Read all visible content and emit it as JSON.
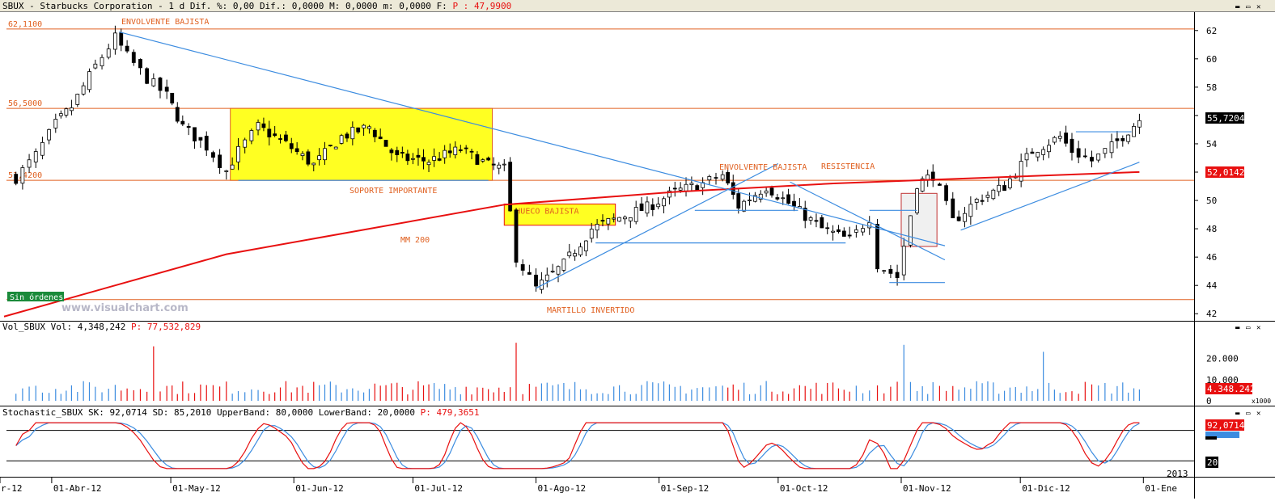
{
  "header": {
    "symbol": "SBUX",
    "company": "Starbucks Corporation",
    "interval": "1 d",
    "diff_pct_label": "Dif. %:",
    "diff_pct": "0,00",
    "diff_label": "Dif.:",
    "diff": "0,0000",
    "max_label": "M:",
    "max": "0,0000",
    "min_label": "m:",
    "min": "0,0000",
    "close_label": "F:",
    "price_label": "P :",
    "price": "47,9900"
  },
  "price_panel": {
    "levels": [
      {
        "label": "62,1100",
        "value": 62.11
      },
      {
        "label": "56,5000",
        "value": 56.5
      },
      {
        "label": "51,4200",
        "value": 51.42
      },
      {
        "label": "",
        "value": 43.0
      }
    ],
    "annotations": {
      "envolvente_top": "ENVOLVENTE BAJISTA",
      "soporte": "SOPORTE IMPORTANTE",
      "hueco": "HUECO  BAJISTA",
      "mm200": "MM 200",
      "martillo": "MARTILLO INVERTIDO",
      "envolvente_mid": "ENVOLVENTE BAJISTA",
      "resistencia": "RESISTENCIA"
    },
    "orders_button": "Sin órdenes",
    "watermark": "www.visualchart.com",
    "last_price_tag": "55,7204",
    "ma_tag": "52,0142",
    "colors": {
      "level": "#e06020",
      "ma": "#e81010",
      "trend": "#3c8ce0",
      "highlight": "#ffff22",
      "annotation": "#e06020"
    }
  },
  "volume_panel": {
    "title": "Vol_SBUX",
    "vol_label": "Vol:",
    "vol": "4,348,242",
    "p_label": "P:",
    "p": "77,532,829",
    "last_tag": "4.348.242",
    "multiplier": "x1000"
  },
  "stoch_panel": {
    "title": "Stochastic_SBUX",
    "sk_label": "SK:",
    "sk": "92,0714",
    "sd_label": "SD:",
    "sd": "85,2010",
    "upper_label": "UpperBand:",
    "upper": "80,0000",
    "lower_label": "LowerBand:",
    "lower": "20,0000",
    "p_label": "P:",
    "p": "479,3651",
    "sk_tag": "92,0714",
    "lower_tag": "20"
  },
  "x_axis": {
    "dates": [
      "r-12",
      "01-Abr-12",
      "01-May-12",
      "01-Jun-12",
      "01-Jul-12",
      "01-Ago-12",
      "01-Sep-12",
      "01-Oct-12",
      "01-Nov-12",
      "01-Dic-12",
      "01-Ene"
    ],
    "year_marker": "2013"
  },
  "chart_data": [
    {
      "type": "candlestick",
      "title": "SBUX - Starbucks Corporation - 1 d",
      "y_ticks": [
        62,
        60,
        58,
        56,
        54,
        52,
        50,
        48,
        46,
        44,
        42
      ],
      "ylim": [
        41.5,
        63.3
      ],
      "x_ticks": [
        "r-12",
        "01-Abr-12",
        "01-May-12",
        "01-Jun-12",
        "01-Jul-12",
        "01-Ago-12",
        "01-Sep-12",
        "01-Oct-12",
        "01-Nov-12",
        "01-Dic-12",
        "01-Ene"
      ],
      "close_path": [
        {
          "date": "2012-03-23",
          "close": 51.6
        },
        {
          "date": "2012-03-28",
          "close": 53.2
        },
        {
          "date": "2012-04-02",
          "close": 55.4
        },
        {
          "date": "2012-04-06",
          "close": 56.6
        },
        {
          "date": "2012-04-12",
          "close": 59.5
        },
        {
          "date": "2012-04-17",
          "close": 61.5
        },
        {
          "date": "2012-04-20",
          "close": 60.2
        },
        {
          "date": "2012-04-25",
          "close": 58.6
        },
        {
          "date": "2012-04-30",
          "close": 57.4
        },
        {
          "date": "2012-05-04",
          "close": 55.2
        },
        {
          "date": "2012-05-10",
          "close": 53.8
        },
        {
          "date": "2012-05-15",
          "close": 52.1
        },
        {
          "date": "2012-05-18",
          "close": 53.5
        },
        {
          "date": "2012-05-23",
          "close": 55.2
        },
        {
          "date": "2012-05-30",
          "close": 54.0
        },
        {
          "date": "2012-06-06",
          "close": 52.5
        },
        {
          "date": "2012-06-13",
          "close": 54.5
        },
        {
          "date": "2012-06-20",
          "close": 55.2
        },
        {
          "date": "2012-06-27",
          "close": 53.0
        },
        {
          "date": "2012-07-05",
          "close": 52.8
        },
        {
          "date": "2012-07-13",
          "close": 53.6
        },
        {
          "date": "2012-07-20",
          "close": 52.5
        },
        {
          "date": "2012-07-24",
          "close": 52.2
        },
        {
          "date": "2012-07-27",
          "close": 46.0
        },
        {
          "date": "2012-08-01",
          "close": 43.8
        },
        {
          "date": "2012-08-08",
          "close": 45.5
        },
        {
          "date": "2012-08-15",
          "close": 48.0
        },
        {
          "date": "2012-08-22",
          "close": 48.8
        },
        {
          "date": "2012-08-29",
          "close": 49.5
        },
        {
          "date": "2012-09-05",
          "close": 50.6
        },
        {
          "date": "2012-09-12",
          "close": 51.2
        },
        {
          "date": "2012-09-17",
          "close": 51.8
        },
        {
          "date": "2012-09-21",
          "close": 49.6
        },
        {
          "date": "2012-09-28",
          "close": 51.0
        },
        {
          "date": "2012-10-05",
          "close": 49.5
        },
        {
          "date": "2012-10-12",
          "close": 48.0
        },
        {
          "date": "2012-10-19",
          "close": 47.2
        },
        {
          "date": "2012-10-24",
          "close": 48.8
        },
        {
          "date": "2012-10-26",
          "close": 45.5
        },
        {
          "date": "2012-10-31",
          "close": 44.6
        },
        {
          "date": "2012-11-05",
          "close": 51.2
        },
        {
          "date": "2012-11-09",
          "close": 51.8
        },
        {
          "date": "2012-11-14",
          "close": 48.5
        },
        {
          "date": "2012-11-20",
          "close": 50.0
        },
        {
          "date": "2012-11-27",
          "close": 51.0
        },
        {
          "date": "2012-12-04",
          "close": 53.5
        },
        {
          "date": "2012-12-11",
          "close": 54.5
        },
        {
          "date": "2012-12-14",
          "close": 53.5
        },
        {
          "date": "2012-12-19",
          "close": 52.8
        },
        {
          "date": "2012-12-24",
          "close": 53.8
        },
        {
          "date": "2012-12-31",
          "close": 55.72
        }
      ],
      "moving_average_200": [
        {
          "date": "2012-03-20",
          "value": 41.8
        },
        {
          "date": "2012-05-15",
          "value": 46.2
        },
        {
          "date": "2012-07-24",
          "value": 49.7
        },
        {
          "date": "2012-09-05",
          "value": 50.6
        },
        {
          "date": "2012-10-15",
          "value": 51.2
        },
        {
          "date": "2012-12-31",
          "value": 52.01
        }
      ]
    },
    {
      "type": "bar",
      "title": "Vol_SBUX",
      "y_ticks": [
        "20.000",
        "10.000",
        "0"
      ],
      "ylim": [
        0,
        31000
      ],
      "unit_label": "x1000",
      "last_value": 4348.242,
      "peaks": [
        {
          "date": "2012-04-27",
          "value": 25800
        },
        {
          "date": "2012-07-27",
          "value": 27500
        },
        {
          "date": "2012-11-02",
          "value": 26500
        },
        {
          "date": "2012-12-07",
          "value": 23200
        }
      ]
    },
    {
      "type": "line",
      "title": "Stochastic_SBUX",
      "ylim": [
        0,
        100
      ],
      "bands": [
        80,
        20
      ],
      "series": [
        {
          "name": "SK",
          "color": "#e81010",
          "last": 92.0714
        },
        {
          "name": "SD",
          "color": "#3c8ce0",
          "last": 85.201
        }
      ]
    }
  ]
}
